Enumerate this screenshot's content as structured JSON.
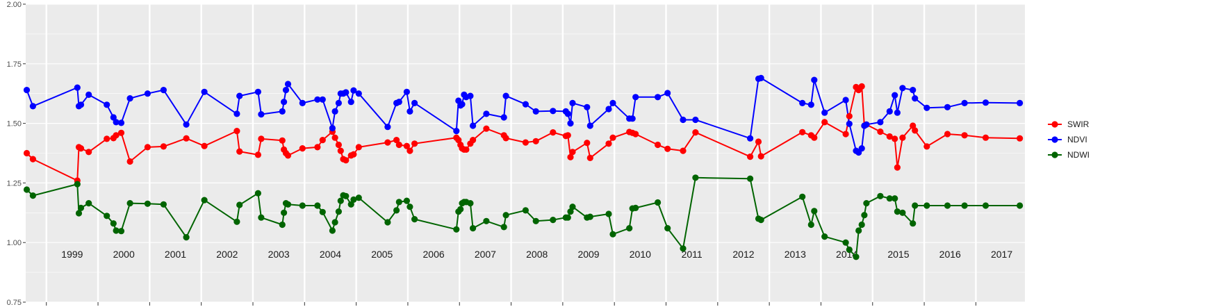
{
  "chart_data": {
    "type": "line",
    "title": "",
    "xlabel": "",
    "ylabel": "",
    "xlim": [
      1998.6,
      2017.95
    ],
    "ylim": [
      0.75,
      2.0
    ],
    "y_ticks": [
      0.75,
      1.0,
      1.25,
      1.5,
      1.75,
      2.0
    ],
    "y_tick_labels": [
      "0.75",
      "1.00",
      "1.25",
      "1.50",
      "1.75",
      "2.00"
    ],
    "year_labels": [
      "1999",
      "2000",
      "2001",
      "2002",
      "2003",
      "2004",
      "2005",
      "2006",
      "2007",
      "2008",
      "2009",
      "2010",
      "2011",
      "2012",
      "2013",
      "2014",
      "2015",
      "2016",
      "2017"
    ],
    "grid": true,
    "legend_position": "right",
    "colors": {
      "SWIR": "#ff0000",
      "NDVI": "#0000ff",
      "NDWI": "#006400",
      "panel": "#ebebeb",
      "grid": "#ffffff"
    },
    "series": [
      {
        "name": "SWIR",
        "x": [
          1998.62,
          1998.74,
          1999.6,
          1999.63,
          1999.67,
          1999.82,
          2000.17,
          2000.3,
          2000.35,
          2000.45,
          2000.62,
          2000.96,
          2001.27,
          2001.71,
          2002.06,
          2002.69,
          2002.74,
          2003.1,
          2003.16,
          2003.57,
          2003.6,
          2003.64,
          2003.68,
          2003.96,
          2004.25,
          2004.35,
          2004.54,
          2004.59,
          2004.66,
          2004.7,
          2004.75,
          2004.8,
          2004.9,
          2004.95,
          2005.05,
          2005.61,
          2005.78,
          2005.83,
          2005.98,
          2006.04,
          2006.13,
          2006.94,
          2006.98,
          2007.02,
          2007.05,
          2007.09,
          2007.13,
          2007.21,
          2007.26,
          2007.52,
          2007.86,
          2007.9,
          2008.28,
          2008.48,
          2008.81,
          2009.06,
          2009.1,
          2009.15,
          2009.19,
          2009.47,
          2009.53,
          2009.89,
          2009.97,
          2010.29,
          2010.35,
          2010.41,
          2010.84,
          2011.03,
          2011.33,
          2011.57,
          2012.63,
          2012.79,
          2012.84,
          2013.64,
          2013.81,
          2013.87,
          2014.07,
          2014.48,
          2014.55,
          2014.68,
          2014.73,
          2014.79,
          2014.84,
          2014.88,
          2015.15,
          2015.33,
          2015.43,
          2015.48,
          2015.58,
          2015.78,
          2015.82,
          2016.05,
          2016.45,
          2016.78,
          2017.19,
          2017.85
        ],
        "y": [
          1.375,
          1.35,
          1.26,
          1.4,
          1.395,
          1.38,
          1.435,
          1.438,
          1.45,
          1.46,
          1.34,
          1.4,
          1.403,
          1.437,
          1.405,
          1.468,
          1.382,
          1.368,
          1.435,
          1.428,
          1.39,
          1.375,
          1.365,
          1.395,
          1.4,
          1.43,
          1.465,
          1.44,
          1.41,
          1.385,
          1.35,
          1.345,
          1.365,
          1.37,
          1.4,
          1.42,
          1.43,
          1.41,
          1.405,
          1.385,
          1.415,
          1.44,
          1.43,
          1.41,
          1.395,
          1.39,
          1.39,
          1.415,
          1.43,
          1.478,
          1.45,
          1.438,
          1.42,
          1.425,
          1.462,
          1.447,
          1.45,
          1.358,
          1.38,
          1.418,
          1.355,
          1.415,
          1.44,
          1.464,
          1.46,
          1.455,
          1.41,
          1.393,
          1.385,
          1.462,
          1.36,
          1.423,
          1.362,
          1.463,
          1.45,
          1.44,
          1.505,
          1.455,
          1.53,
          1.652,
          1.64,
          1.655,
          1.49,
          1.495,
          1.465,
          1.445,
          1.435,
          1.315,
          1.44,
          1.49,
          1.47,
          1.403,
          1.455,
          1.45,
          1.44,
          1.437
        ]
      },
      {
        "name": "NDVI",
        "x": [
          1998.62,
          1998.74,
          1999.6,
          1999.63,
          1999.67,
          1999.82,
          2000.17,
          2000.3,
          2000.35,
          2000.45,
          2000.62,
          2000.96,
          2001.27,
          2001.71,
          2002.06,
          2002.69,
          2002.74,
          2003.1,
          2003.16,
          2003.57,
          2003.6,
          2003.64,
          2003.68,
          2003.96,
          2004.25,
          2004.35,
          2004.54,
          2004.59,
          2004.66,
          2004.7,
          2004.75,
          2004.8,
          2004.9,
          2004.95,
          2005.05,
          2005.61,
          2005.78,
          2005.83,
          2005.98,
          2006.04,
          2006.13,
          2006.94,
          2006.98,
          2007.02,
          2007.05,
          2007.09,
          2007.13,
          2007.21,
          2007.26,
          2007.52,
          2007.86,
          2007.9,
          2008.28,
          2008.48,
          2008.81,
          2009.06,
          2009.1,
          2009.15,
          2009.19,
          2009.47,
          2009.53,
          2009.89,
          2009.97,
          2010.29,
          2010.35,
          2010.41,
          2010.84,
          2011.03,
          2011.33,
          2011.57,
          2012.63,
          2012.79,
          2012.84,
          2013.64,
          2013.81,
          2013.87,
          2014.07,
          2014.48,
          2014.55,
          2014.68,
          2014.73,
          2014.79,
          2014.84,
          2014.88,
          2015.15,
          2015.33,
          2015.43,
          2015.48,
          2015.58,
          2015.78,
          2015.82,
          2016.05,
          2016.45,
          2016.78,
          2017.19,
          2017.85
        ],
        "y": [
          1.64,
          1.572,
          1.65,
          1.572,
          1.578,
          1.62,
          1.578,
          1.525,
          1.505,
          1.502,
          1.605,
          1.625,
          1.64,
          1.495,
          1.632,
          1.54,
          1.615,
          1.632,
          1.538,
          1.55,
          1.59,
          1.64,
          1.665,
          1.585,
          1.6,
          1.6,
          1.48,
          1.55,
          1.585,
          1.625,
          1.625,
          1.63,
          1.59,
          1.638,
          1.625,
          1.485,
          1.585,
          1.59,
          1.632,
          1.55,
          1.585,
          1.468,
          1.595,
          1.575,
          1.58,
          1.62,
          1.61,
          1.615,
          1.49,
          1.54,
          1.525,
          1.615,
          1.58,
          1.55,
          1.552,
          1.55,
          1.54,
          1.5,
          1.585,
          1.568,
          1.49,
          1.56,
          1.585,
          1.52,
          1.52,
          1.61,
          1.61,
          1.627,
          1.515,
          1.515,
          1.437,
          1.687,
          1.69,
          1.585,
          1.578,
          1.682,
          1.545,
          1.598,
          1.498,
          1.385,
          1.378,
          1.395,
          1.49,
          1.495,
          1.505,
          1.55,
          1.618,
          1.545,
          1.648,
          1.64,
          1.605,
          1.565,
          1.568,
          1.585,
          1.587,
          1.585
        ]
      },
      {
        "name": "NDWI",
        "x": [
          1998.62,
          1998.74,
          1999.6,
          1999.63,
          1999.67,
          1999.82,
          2000.17,
          2000.3,
          2000.35,
          2000.45,
          2000.62,
          2000.96,
          2001.27,
          2001.71,
          2002.06,
          2002.69,
          2002.74,
          2003.1,
          2003.16,
          2003.57,
          2003.6,
          2003.64,
          2003.68,
          2003.96,
          2004.25,
          2004.35,
          2004.54,
          2004.59,
          2004.66,
          2004.7,
          2004.75,
          2004.8,
          2004.9,
          2004.95,
          2005.05,
          2005.61,
          2005.78,
          2005.83,
          2005.98,
          2006.04,
          2006.13,
          2006.94,
          2006.98,
          2007.02,
          2007.05,
          2007.09,
          2007.13,
          2007.21,
          2007.26,
          2007.52,
          2007.86,
          2007.9,
          2008.28,
          2008.48,
          2008.81,
          2009.06,
          2009.1,
          2009.15,
          2009.19,
          2009.47,
          2009.53,
          2009.89,
          2009.97,
          2010.29,
          2010.35,
          2010.41,
          2010.84,
          2011.03,
          2011.33,
          2011.57,
          2012.63,
          2012.79,
          2012.84,
          2013.64,
          2013.81,
          2013.87,
          2014.07,
          2014.48,
          2014.55,
          2014.68,
          2014.73,
          2014.79,
          2014.84,
          2014.88,
          2015.15,
          2015.33,
          2015.43,
          2015.48,
          2015.58,
          2015.78,
          2015.82,
          2016.05,
          2016.45,
          2016.78,
          2017.19,
          2017.85
        ],
        "y": [
          1.222,
          1.197,
          1.245,
          1.123,
          1.145,
          1.165,
          1.112,
          1.08,
          1.05,
          1.048,
          1.165,
          1.163,
          1.16,
          1.022,
          1.178,
          1.087,
          1.158,
          1.207,
          1.105,
          1.075,
          1.125,
          1.165,
          1.16,
          1.155,
          1.155,
          1.128,
          1.05,
          1.085,
          1.13,
          1.175,
          1.198,
          1.195,
          1.16,
          1.18,
          1.188,
          1.085,
          1.135,
          1.17,
          1.175,
          1.15,
          1.098,
          1.055,
          1.13,
          1.14,
          1.165,
          1.17,
          1.17,
          1.165,
          1.06,
          1.09,
          1.065,
          1.115,
          1.135,
          1.09,
          1.095,
          1.105,
          1.105,
          1.13,
          1.15,
          1.105,
          1.108,
          1.12,
          1.035,
          1.06,
          1.143,
          1.145,
          1.168,
          1.06,
          0.975,
          1.272,
          1.268,
          1.1,
          1.095,
          1.192,
          1.075,
          1.132,
          1.025,
          1.0,
          0.97,
          0.94,
          1.05,
          1.075,
          1.115,
          1.165,
          1.195,
          1.185,
          1.185,
          1.13,
          1.125,
          1.08,
          1.155,
          1.155,
          1.155,
          1.155,
          1.155,
          1.155
        ]
      }
    ]
  }
}
